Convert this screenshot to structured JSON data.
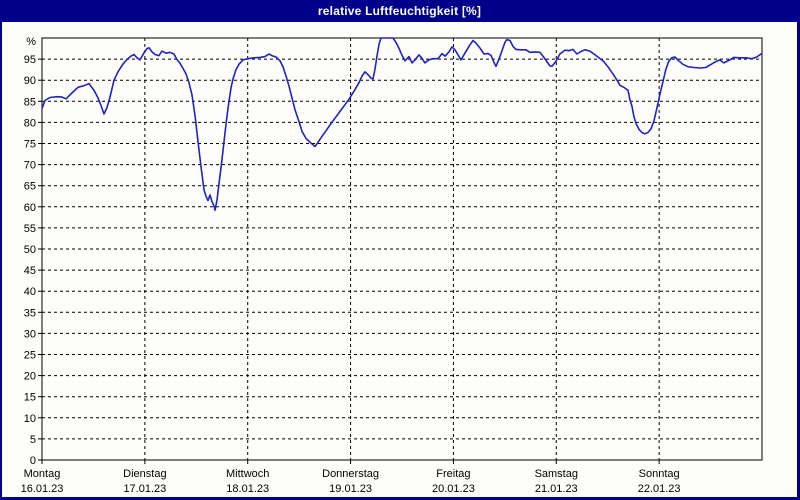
{
  "window": {
    "title": "relative Luftfeuchtigkeit [%]"
  },
  "colors": {
    "title_bar_bg": "#00008b",
    "border": "#00008b",
    "background": "#fdfdfa",
    "line": "#2222c0",
    "grid": "#000000",
    "text": "#000000"
  },
  "chart_data": {
    "type": "line",
    "title": "relative Luftfeuchtigkeit [%]",
    "ylabel": "%",
    "y_top_label": "%",
    "ylim": [
      0,
      100
    ],
    "yticks": [
      0,
      5,
      10,
      15,
      20,
      25,
      30,
      35,
      40,
      45,
      50,
      55,
      60,
      65,
      70,
      75,
      80,
      85,
      90,
      95
    ],
    "grid": "dashed",
    "legend_position": "none",
    "x_axis_days": [
      {
        "weekday": "Montag",
        "date": "16.01.23"
      },
      {
        "weekday": "Dienstag",
        "date": "17.01.23"
      },
      {
        "weekday": "Mittwoch",
        "date": "18.01.23"
      },
      {
        "weekday": "Donnerstag",
        "date": "19.01.23"
      },
      {
        "weekday": "Freitag",
        "date": "20.01.23"
      },
      {
        "weekday": "Samstag",
        "date": "21.01.23"
      },
      {
        "weekday": "Sonntag",
        "date": "22.01.23"
      }
    ],
    "x_range_days": [
      0,
      7
    ],
    "series": [
      {
        "name": "relative Luftfeuchtigkeit",
        "color": "#2222c0",
        "points": [
          [
            0.0,
            83.3
          ],
          [
            0.029,
            85.2
          ],
          [
            0.078,
            85.9
          ],
          [
            0.146,
            86.1
          ],
          [
            0.194,
            86.0
          ],
          [
            0.233,
            85.6
          ],
          [
            0.292,
            87.0
          ],
          [
            0.35,
            88.3
          ],
          [
            0.418,
            88.8
          ],
          [
            0.457,
            89.2
          ],
          [
            0.506,
            87.6
          ],
          [
            0.544,
            85.8
          ],
          [
            0.574,
            84.0
          ],
          [
            0.603,
            82.0
          ],
          [
            0.632,
            83.5
          ],
          [
            0.661,
            86.0
          ],
          [
            0.7,
            90.0
          ],
          [
            0.739,
            92.0
          ],
          [
            0.787,
            93.8
          ],
          [
            0.826,
            94.9
          ],
          [
            0.865,
            95.7
          ],
          [
            0.894,
            96.1
          ],
          [
            0.924,
            95.3
          ],
          [
            0.953,
            94.8
          ],
          [
            0.992,
            96.5
          ],
          [
            1.021,
            97.5
          ],
          [
            1.04,
            97.7
          ],
          [
            1.069,
            96.7
          ],
          [
            1.099,
            96.1
          ],
          [
            1.137,
            95.8
          ],
          [
            1.167,
            96.9
          ],
          [
            1.206,
            96.4
          ],
          [
            1.244,
            96.6
          ],
          [
            1.283,
            96.2
          ],
          [
            1.312,
            94.9
          ],
          [
            1.342,
            94.0
          ],
          [
            1.371,
            92.8
          ],
          [
            1.4,
            91.5
          ],
          [
            1.429,
            89.4
          ],
          [
            1.458,
            86.5
          ],
          [
            1.488,
            81.5
          ],
          [
            1.517,
            75.5
          ],
          [
            1.546,
            69.5
          ],
          [
            1.575,
            64.0
          ],
          [
            1.594,
            62.5
          ],
          [
            1.614,
            61.5
          ],
          [
            1.633,
            62.8
          ],
          [
            1.652,
            61.3
          ],
          [
            1.672,
            60.2
          ],
          [
            1.682,
            59.2
          ],
          [
            1.701,
            61.6
          ],
          [
            1.721,
            65.5
          ],
          [
            1.74,
            69.3
          ],
          [
            1.76,
            73.3
          ],
          [
            1.779,
            77.5
          ],
          [
            1.798,
            81.3
          ],
          [
            1.818,
            85.0
          ],
          [
            1.837,
            88.0
          ],
          [
            1.857,
            90.3
          ],
          [
            1.886,
            92.5
          ],
          [
            1.915,
            93.8
          ],
          [
            1.954,
            94.8
          ],
          [
            2.003,
            95.1
          ],
          [
            2.061,
            95.3
          ],
          [
            2.119,
            95.4
          ],
          [
            2.168,
            95.6
          ],
          [
            2.207,
            96.2
          ],
          [
            2.236,
            95.8
          ],
          [
            2.275,
            95.5
          ],
          [
            2.314,
            94.6
          ],
          [
            2.343,
            93.2
          ],
          [
            2.372,
            91.0
          ],
          [
            2.401,
            88.6
          ],
          [
            2.431,
            85.8
          ],
          [
            2.46,
            83.0
          ],
          [
            2.499,
            80.2
          ],
          [
            2.528,
            77.9
          ],
          [
            2.567,
            76.2
          ],
          [
            2.606,
            75.3
          ],
          [
            2.635,
            74.7
          ],
          [
            2.654,
            74.3
          ],
          [
            2.684,
            75.3
          ],
          [
            2.722,
            76.7
          ],
          [
            2.761,
            78.0
          ],
          [
            2.8,
            79.4
          ],
          [
            2.849,
            81.0
          ],
          [
            2.897,
            82.6
          ],
          [
            2.946,
            84.2
          ],
          [
            2.985,
            85.5
          ],
          [
            3.033,
            87.4
          ],
          [
            3.082,
            89.4
          ],
          [
            3.111,
            91.0
          ],
          [
            3.14,
            92.0
          ],
          [
            3.169,
            91.3
          ],
          [
            3.199,
            90.5
          ],
          [
            3.218,
            90.3
          ],
          [
            3.237,
            92.5
          ],
          [
            3.257,
            95.7
          ],
          [
            3.276,
            98.5
          ],
          [
            3.296,
            100.0
          ],
          [
            3.412,
            100.0
          ],
          [
            3.441,
            99.0
          ],
          [
            3.47,
            97.6
          ],
          [
            3.5,
            95.9
          ],
          [
            3.529,
            94.6
          ],
          [
            3.568,
            95.6
          ],
          [
            3.597,
            94.1
          ],
          [
            3.626,
            94.8
          ],
          [
            3.665,
            96.0
          ],
          [
            3.694,
            95.2
          ],
          [
            3.723,
            94.1
          ],
          [
            3.762,
            94.8
          ],
          [
            3.801,
            95.1
          ],
          [
            3.85,
            95.1
          ],
          [
            3.889,
            96.3
          ],
          [
            3.918,
            95.7
          ],
          [
            3.957,
            96.7
          ],
          [
            3.986,
            97.9
          ],
          [
            4.015,
            97.2
          ],
          [
            4.044,
            96.0
          ],
          [
            4.074,
            94.8
          ],
          [
            4.112,
            96.4
          ],
          [
            4.161,
            98.4
          ],
          [
            4.19,
            99.4
          ],
          [
            4.219,
            98.8
          ],
          [
            4.258,
            97.6
          ],
          [
            4.297,
            96.2
          ],
          [
            4.336,
            96.3
          ],
          [
            4.365,
            95.9
          ],
          [
            4.394,
            94.2
          ],
          [
            4.414,
            93.3
          ],
          [
            4.443,
            95.0
          ],
          [
            4.472,
            97.0
          ],
          [
            4.501,
            99.0
          ],
          [
            4.52,
            99.6
          ],
          [
            4.55,
            99.4
          ],
          [
            4.579,
            98.0
          ],
          [
            4.608,
            97.3
          ],
          [
            4.657,
            97.2
          ],
          [
            4.705,
            97.2
          ],
          [
            4.744,
            96.6
          ],
          [
            4.793,
            96.7
          ],
          [
            4.841,
            96.6
          ],
          [
            4.88,
            95.4
          ],
          [
            4.909,
            94.4
          ],
          [
            4.938,
            93.4
          ],
          [
            4.958,
            93.3
          ],
          [
            4.997,
            94.5
          ],
          [
            5.035,
            96.2
          ],
          [
            5.084,
            97.1
          ],
          [
            5.123,
            97.0
          ],
          [
            5.162,
            97.3
          ],
          [
            5.201,
            96.2
          ],
          [
            5.24,
            96.8
          ],
          [
            5.278,
            97.2
          ],
          [
            5.327,
            96.9
          ],
          [
            5.366,
            96.2
          ],
          [
            5.405,
            95.5
          ],
          [
            5.454,
            94.6
          ],
          [
            5.502,
            93.2
          ],
          [
            5.551,
            91.5
          ],
          [
            5.59,
            90.0
          ],
          [
            5.619,
            88.8
          ],
          [
            5.658,
            88.3
          ],
          [
            5.697,
            87.6
          ],
          [
            5.716,
            85.4
          ],
          [
            5.736,
            83.8
          ],
          [
            5.755,
            81.4
          ],
          [
            5.774,
            79.8
          ],
          [
            5.803,
            78.4
          ],
          [
            5.832,
            77.6
          ],
          [
            5.861,
            77.3
          ],
          [
            5.89,
            77.6
          ],
          [
            5.919,
            78.4
          ],
          [
            5.948,
            80.2
          ],
          [
            5.978,
            83.4
          ],
          [
            6.007,
            86.6
          ],
          [
            6.036,
            89.5
          ],
          [
            6.065,
            92.5
          ],
          [
            6.094,
            94.5
          ],
          [
            6.123,
            95.3
          ],
          [
            6.153,
            95.5
          ],
          [
            6.191,
            94.6
          ],
          [
            6.23,
            93.8
          ],
          [
            6.279,
            93.2
          ],
          [
            6.337,
            93.0
          ],
          [
            6.395,
            92.9
          ],
          [
            6.454,
            93.0
          ],
          [
            6.502,
            93.7
          ],
          [
            6.551,
            94.4
          ],
          [
            6.59,
            94.8
          ],
          [
            6.629,
            94.1
          ],
          [
            6.677,
            94.7
          ],
          [
            6.726,
            95.4
          ],
          [
            6.784,
            95.3
          ],
          [
            6.842,
            95.3
          ],
          [
            6.9,
            95.1
          ],
          [
            6.949,
            95.5
          ],
          [
            6.978,
            96.0
          ],
          [
            6.998,
            96.3
          ]
        ]
      }
    ]
  }
}
